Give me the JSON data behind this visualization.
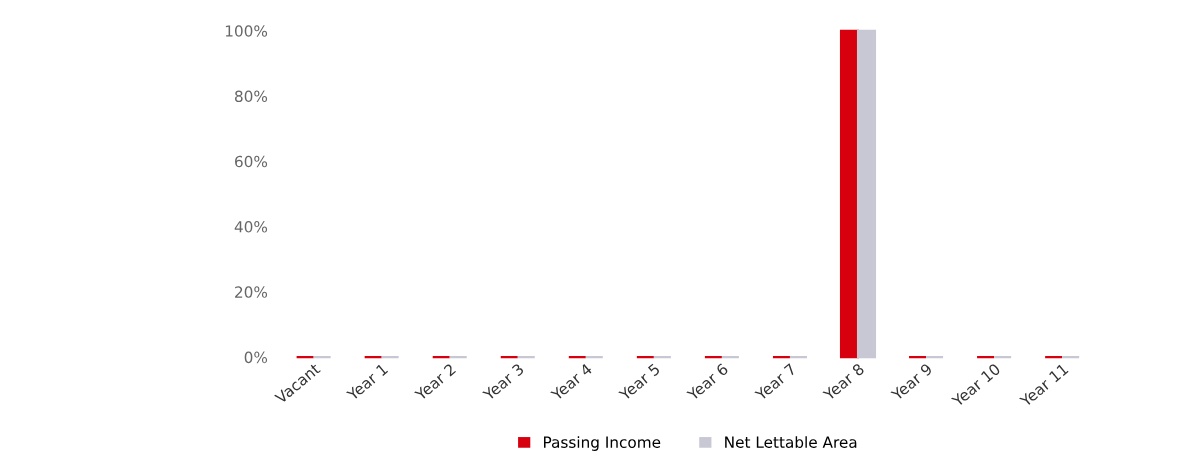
{
  "chart_data": {
    "type": "bar",
    "categories": [
      "Vacant",
      "Year 1",
      "Year 2",
      "Year 3",
      "Year 4",
      "Year 5",
      "Year 6",
      "Year 7",
      "Year 8",
      "Year 9",
      "Year 10",
      "Year 11"
    ],
    "series": [
      {
        "name": "Passing Income",
        "color": "#d7000f",
        "values": [
          0,
          0,
          0,
          0,
          0,
          0,
          0,
          0,
          100,
          0,
          0,
          0
        ]
      },
      {
        "name": "Net Lettable Area",
        "color": "#c8c8d4",
        "values": [
          0,
          0,
          0,
          0,
          0,
          0,
          0,
          0,
          100,
          0,
          0,
          0
        ]
      }
    ],
    "ylim": [
      0,
      100
    ],
    "yticks": [
      {
        "value": 0,
        "label": "0%"
      },
      {
        "value": 20,
        "label": "20%"
      },
      {
        "value": 40,
        "label": "40%"
      },
      {
        "value": 60,
        "label": "60%"
      },
      {
        "value": 80,
        "label": "80%"
      },
      {
        "value": 100,
        "label": "100%"
      }
    ],
    "grid": false,
    "legend": "bottom"
  }
}
